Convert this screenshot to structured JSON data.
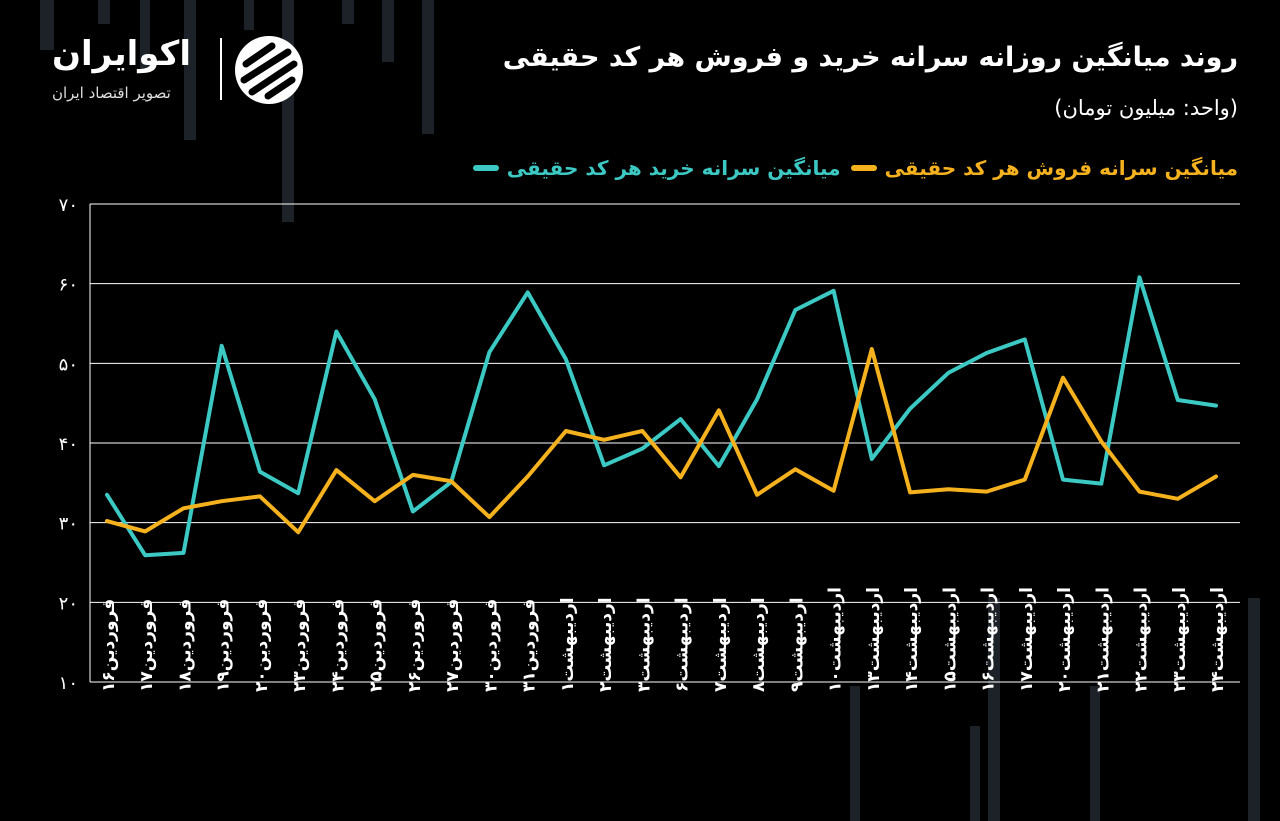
{
  "header": {
    "title": "روند میانگین روزانه سرانه خرید و فروش هر کد حقیقی",
    "subtitle": "(واحد: میلیون تومان)"
  },
  "brand": {
    "name": "اکوایران",
    "tagline": "تصویر اقتصاد ایران",
    "emblem_icon": "ecoiran-logo-icon"
  },
  "colors": {
    "buy": "#3cc9c4",
    "sell": "#f5b21e",
    "background": "#000000",
    "grid": "#ffffff"
  },
  "chart_data": {
    "type": "line",
    "title": "روند میانگین روزانه سرانه خرید و فروش هر کد حقیقی",
    "unit": "(واحد: میلیون تومان)",
    "categories": [
      "فروردین۱۶",
      "فروردین۱۷",
      "فروردین۱۸",
      "فروردین۱۹",
      "فروردین۲۰",
      "فروردین۲۳",
      "فروردین۲۴",
      "فروردین۲۵",
      "فروردین۲۶",
      "فروردین۲۷",
      "فروردین۳۰",
      "فروردین۳۱",
      "اردیبهشت۱",
      "اردیبهشت۲",
      "اردیبهشت۳",
      "اردیبهشت۶",
      "اردیبهشت۷",
      "اردیبهشت۸",
      "اردیبهشت۹",
      "اردیبهشت۱۰",
      "اردیبهشت۱۳",
      "اردیبهشت۱۴",
      "اردیبهشت۱۵",
      "اردیبهشت۱۶",
      "اردیبهشت۱۷",
      "اردیبهشت۲۰",
      "اردیبهشت۲۱",
      "اردیبهشت۲۲",
      "اردیبهشت۲۳",
      "اردیبهشت۲۴"
    ],
    "y_ticks": [
      "۱۰",
      "۲۰",
      "۳۰",
      "۴۰",
      "۵۰",
      "۶۰",
      "۷۰"
    ],
    "ylim": [
      10,
      70
    ],
    "grid": true,
    "legend_position": "top-right",
    "series": [
      {
        "name": "میانگین سرانه خرید هر کد حقیقی",
        "color_key": "buy",
        "values": [
          33.5,
          25.9,
          26.2,
          52.2,
          36.4,
          33.7,
          54.0,
          45.5,
          31.4,
          35.1,
          51.4,
          58.9,
          50.5,
          37.2,
          39.3,
          43.0,
          37.1,
          45.5,
          56.7,
          59.1,
          38.0,
          44.3,
          48.8,
          51.3,
          53.0,
          35.4,
          34.9,
          60.8,
          45.4,
          44.7
        ]
      },
      {
        "name": "میانگین سرانه فروش هر کد حقیقی",
        "color_key": "sell",
        "values": [
          30.2,
          28.9,
          31.8,
          32.7,
          33.3,
          28.8,
          36.6,
          32.7,
          36.0,
          35.2,
          30.7,
          35.8,
          41.5,
          40.4,
          41.5,
          35.7,
          44.1,
          33.5,
          36.7,
          34.0,
          51.8,
          33.8,
          34.2,
          33.9,
          35.4,
          48.2,
          40.2,
          33.9,
          33.0,
          35.8
        ]
      }
    ]
  }
}
